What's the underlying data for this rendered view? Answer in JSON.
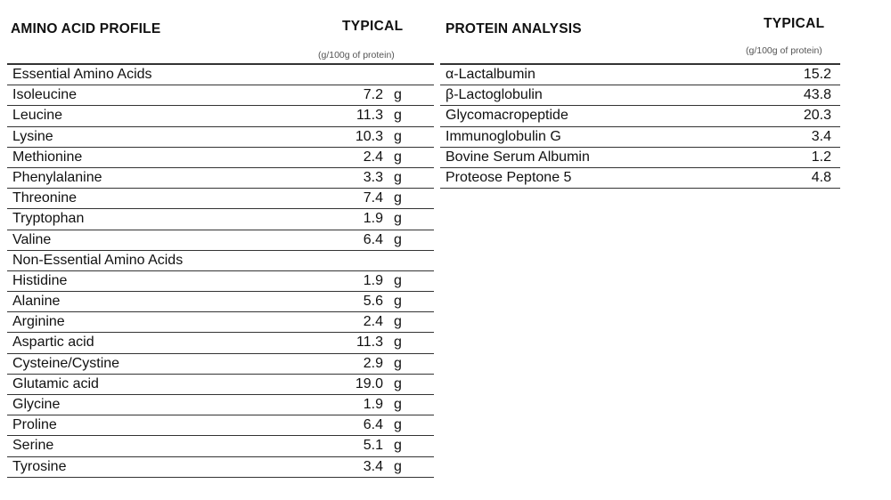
{
  "amino": {
    "title": "AMINO ACID PROFILE",
    "typical": "TYPICAL",
    "unit": "(g/100g of protein)",
    "rows": [
      {
        "name": "Essential Amino Acids",
        "value": "",
        "unit": ""
      },
      {
        "name": "Isoleucine",
        "value": "7.2",
        "unit": "g"
      },
      {
        "name": "Leucine",
        "value": "11.3",
        "unit": "g"
      },
      {
        "name": "Lysine",
        "value": "10.3",
        "unit": "g"
      },
      {
        "name": "Methionine",
        "value": "2.4",
        "unit": "g"
      },
      {
        "name": "Phenylalanine",
        "value": "3.3",
        "unit": "g"
      },
      {
        "name": "Threonine",
        "value": "7.4",
        "unit": "g"
      },
      {
        "name": "Tryptophan",
        "value": "1.9",
        "unit": "g"
      },
      {
        "name": "Valine",
        "value": "6.4",
        "unit": "g"
      },
      {
        "name": "Non-Essential Amino Acids",
        "value": "",
        "unit": ""
      },
      {
        "name": "Histidine",
        "value": "1.9",
        "unit": "g"
      },
      {
        "name": "Alanine",
        "value": "5.6",
        "unit": "g"
      },
      {
        "name": "Arginine",
        "value": "2.4",
        "unit": "g"
      },
      {
        "name": "Aspartic acid",
        "value": "11.3",
        "unit": "g"
      },
      {
        "name": "Cysteine/Cystine",
        "value": "2.9",
        "unit": "g"
      },
      {
        "name": "Glutamic acid",
        "value": "19.0",
        "unit": "g"
      },
      {
        "name": "Glycine",
        "value": "1.9",
        "unit": "g"
      },
      {
        "name": "Proline",
        "value": "6.4",
        "unit": "g"
      },
      {
        "name": "Serine",
        "value": "5.1",
        "unit": "g"
      },
      {
        "name": "Tyrosine",
        "value": "3.4",
        "unit": "g"
      }
    ]
  },
  "protein": {
    "title": "PROTEIN ANALYSIS",
    "typical": "TYPICAL",
    "unit": "(g/100g of protein)",
    "rows": [
      {
        "name": "α-Lactalbumin",
        "value": "15.2"
      },
      {
        "name": "β-Lactoglobulin",
        "value": "43.8"
      },
      {
        "name": "Glycomacropeptide",
        "value": "20.3"
      },
      {
        "name": "Immunoglobulin G",
        "value": "3.4"
      },
      {
        "name": "Bovine Serum Albumin",
        "value": "1.2"
      },
      {
        "name": "Proteose Peptone 5",
        "value": "4.8"
      }
    ]
  }
}
